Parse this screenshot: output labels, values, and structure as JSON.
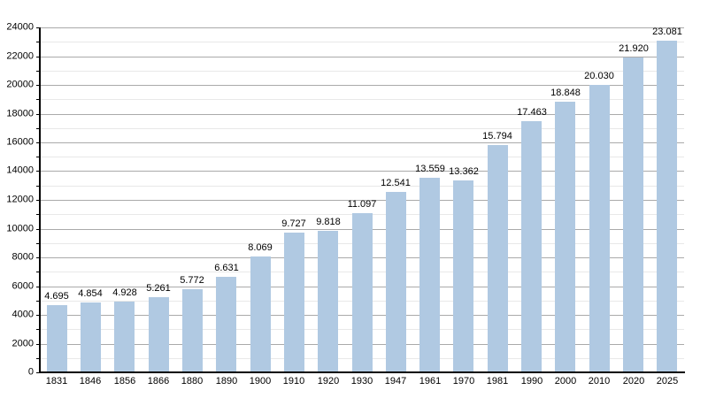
{
  "chart_data": {
    "type": "bar",
    "title": "",
    "xlabel": "",
    "ylabel": "",
    "categories": [
      "1831",
      "1846",
      "1856",
      "1866",
      "1880",
      "1890",
      "1900",
      "1910",
      "1920",
      "1930",
      "1947",
      "1961",
      "1970",
      "1981",
      "1990",
      "2000",
      "2010",
      "2020",
      "2025"
    ],
    "values": [
      4695,
      4854,
      4928,
      5261,
      5772,
      6631,
      8069,
      9727,
      9818,
      11097,
      12541,
      13559,
      13362,
      15794,
      17463,
      18848,
      20030,
      21920,
      23081
    ],
    "value_labels": [
      "4.695",
      "4.854",
      "4.928",
      "5.261",
      "5.772",
      "6.631",
      "8.069",
      "9.727",
      "9.818",
      "11.097",
      "12.541",
      "13.559",
      "13.362",
      "15.794",
      "17.463",
      "18.848",
      "20.030",
      "21.920",
      "23.081"
    ],
    "y_tick_labels": [
      "0",
      "2000",
      "4000",
      "6000",
      "8000",
      "10000",
      "12000",
      "14000",
      "16000",
      "18000",
      "20000",
      "22000",
      "24000"
    ],
    "ylim": [
      0,
      24000
    ],
    "y_major_step": 2000,
    "y_minor_step": 1000,
    "grid": true,
    "legend_position": "none",
    "colors": {
      "bar": "#b0c9e2",
      "grid_major": "#aaaaaa",
      "grid_minor": "#e8e8e8",
      "axis": "#000000",
      "text": "#000000",
      "background": "#ffffff"
    }
  }
}
